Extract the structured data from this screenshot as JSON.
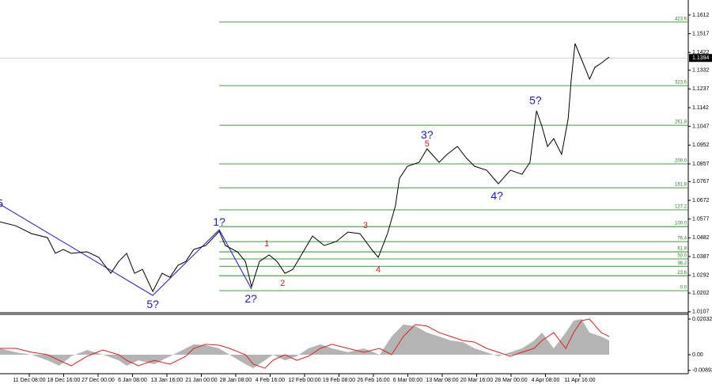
{
  "chart_data": {
    "type": "line",
    "xlim": [
      -8.5,
      191.5
    ],
    "xticks": [
      {
        "value": 0,
        "label": "11 Dec 08:00"
      },
      {
        "value": 10,
        "label": "18 Dec 16:00"
      },
      {
        "value": 20,
        "label": "27 Dec 00:00"
      },
      {
        "value": 30,
        "label": "6 Jan 08:00"
      },
      {
        "value": 40,
        "label": "13 Jan 16:00"
      },
      {
        "value": 50,
        "label": "21 Jan 00:00"
      },
      {
        "value": 60,
        "label": "28 Jan 08:00"
      },
      {
        "value": 70,
        "label": "4 Feb 16:00"
      },
      {
        "value": 80,
        "label": "12 Feb 00:00"
      },
      {
        "value": 90,
        "label": "19 Feb 08:00"
      },
      {
        "value": 100,
        "label": "26 Feb 16:00"
      },
      {
        "value": 110,
        "label": "6 Mar 00:00"
      },
      {
        "value": 120,
        "label": "13 Mar 08:00"
      },
      {
        "value": 130,
        "label": "20 Mar 16:00"
      },
      {
        "value": 140,
        "label": "28 Mar 00:00"
      },
      {
        "value": 150,
        "label": "4 Apr 08:00"
      },
      {
        "value": 160,
        "label": "11 Apr 16:00"
      }
    ],
    "ylim": [
      1.0102,
      1.1688
    ],
    "yticks": [
      1.1612,
      1.1517,
      1.1422,
      1.1332,
      1.1237,
      1.1142,
      1.1047,
      1.0952,
      1.0857,
      1.0767,
      1.0672,
      1.0577,
      1.0482,
      1.0387,
      1.0292,
      1.0202,
      1.0107
    ],
    "current_price": 1.1394,
    "price": {
      "color": "#000000",
      "x": [
        -8.5,
        -3.9,
        0.7,
        5.3,
        7.6,
        9.9,
        12.2,
        16.8,
        20.2,
        23.7,
        26,
        28.3,
        30.6,
        32.9,
        35.9,
        38.6,
        40.9,
        43.2,
        45.5,
        47.8,
        51.3,
        55.2,
        57,
        60.5,
        62.8,
        64.6,
        66.9,
        69.7,
        72,
        74.3,
        76.6,
        80,
        82.3,
        85.7,
        89.2,
        92.6,
        96.1,
        99.5,
        101.4,
        104.1,
        106.4,
        107.6,
        109.9,
        113.3,
        115.6,
        119.1,
        121.4,
        124.4,
        127.1,
        129.4,
        132.9,
        136.3,
        139.8,
        143.2,
        145.5,
        147.4,
        149,
        150.6,
        152.4,
        154.7,
        156.6,
        157.5,
        158.6,
        160.5,
        162.8,
        164.4,
        166.2,
        168.5
      ],
      "values": [
        1.0563,
        1.0543,
        1.0503,
        1.0483,
        1.0403,
        1.0423,
        1.0403,
        1.0411,
        1.0383,
        1.0302,
        1.0362,
        1.0403,
        1.0302,
        1.0322,
        1.021,
        1.0302,
        1.0282,
        1.0342,
        1.0362,
        1.0423,
        1.0443,
        1.0515,
        1.0443,
        1.0411,
        1.0362,
        1.0234,
        1.0362,
        1.0395,
        1.0362,
        1.0302,
        1.0322,
        1.0423,
        1.0491,
        1.0443,
        1.0463,
        1.0511,
        1.0503,
        1.0423,
        1.0383,
        1.0503,
        1.0644,
        1.0784,
        1.0845,
        1.0865,
        1.0933,
        1.0865,
        1.0905,
        1.0945,
        1.0885,
        1.0845,
        1.0825,
        1.0756,
        1.0825,
        1.0804,
        1.0865,
        1.1126,
        1.1046,
        1.0945,
        1.0985,
        1.0905,
        1.1086,
        1.1287,
        1.1467,
        1.1387,
        1.1287,
        1.1347,
        1.1367,
        1.1399
      ]
    },
    "wave_line": {
      "color": "#1a1acc",
      "x": [
        -8.5,
        35.9,
        55.2,
        64.6
      ],
      "values": [
        1.0652,
        1.019,
        1.0523,
        1.0222
      ]
    },
    "fib_start": 55.2,
    "fib_color": "#008000",
    "fib_levels": [
      {
        "label": "423.6",
        "price": 1.1576
      },
      {
        "label": "323.6",
        "price": 1.1254
      },
      {
        "label": "261.8",
        "price": 1.1053
      },
      {
        "label": "200.0",
        "price": 1.0857
      },
      {
        "label": "161.8",
        "price": 1.0736
      },
      {
        "label": "127.2",
        "price": 1.0624
      },
      {
        "label": "100.0",
        "price": 1.0539
      },
      {
        "label": "76.4",
        "price": 1.0463
      },
      {
        "label": "61.8",
        "price": 1.0411
      },
      {
        "label": "50.0",
        "price": 1.0375
      },
      {
        "label": "38.2",
        "price": 1.0338
      },
      {
        "label": "23.6",
        "price": 1.029
      },
      {
        "label": "0.0",
        "price": 1.0214
      }
    ],
    "annotations": [
      {
        "text": "5",
        "x": -8.5,
        "y": 1.0652,
        "color": "#1a1acc"
      },
      {
        "text": "5?",
        "x": 35.9,
        "y": 1.0141,
        "color": "#1a1acc"
      },
      {
        "text": "1?",
        "x": 55.2,
        "y": 1.0559,
        "color": "#1a1acc"
      },
      {
        "text": "2?",
        "x": 64.4,
        "y": 1.017,
        "color": "#1a1acc"
      },
      {
        "text": "1",
        "x": 69,
        "y": 1.0451,
        "color": "#d42020"
      },
      {
        "text": "2",
        "x": 73.6,
        "y": 1.025,
        "color": "#d42020"
      },
      {
        "text": "3",
        "x": 97.7,
        "y": 1.0543,
        "color": "#d42020"
      },
      {
        "text": "4",
        "x": 101.4,
        "y": 1.0318,
        "color": "#d42020"
      },
      {
        "text": "3?",
        "x": 115.6,
        "y": 1.1001,
        "color": "#1a1acc"
      },
      {
        "text": "5",
        "x": 115.6,
        "y": 1.0957,
        "color": "#d42020"
      },
      {
        "text": "4?",
        "x": 135.9,
        "y": 1.0692,
        "color": "#1a1acc"
      },
      {
        "text": "5?",
        "x": 147.1,
        "y": 1.1174,
        "color": "#1a1acc"
      }
    ],
    "oscillator": {
      "y2lim": [
        -0.00993,
        0.02303
      ],
      "y2ticks": [
        0.02032,
        {
          "value": 0,
          "label": "0.00"
        },
        -0.00893
      ],
      "x": [
        -8.5,
        -3.9,
        0.7,
        5.3,
        8.7,
        12.2,
        16.8,
        21.4,
        26,
        28.3,
        31.7,
        36.3,
        40.9,
        45.5,
        47.8,
        51.3,
        55.2,
        58.2,
        62.8,
        65.1,
        68.5,
        70.8,
        74.3,
        77.7,
        81.1,
        84.6,
        88,
        92.6,
        97.2,
        101.8,
        105.3,
        108.7,
        112.2,
        115.6,
        119.1,
        122.5,
        126,
        129.4,
        132.9,
        136.3,
        139.8,
        143.2,
        146.7,
        149,
        152.4,
        155.9,
        158.2,
        160.5,
        162.8,
        166.2,
        168.5
      ],
      "histogram": {
        "color": "#b4b4b4",
        "values": [
          0.0036,
          0.0014,
          0,
          -0.0032,
          -0.0063,
          -0.0009,
          0.0027,
          0,
          -0.0032,
          -0.0063,
          -0.0032,
          -0.0054,
          -0.0009,
          0.0036,
          0.0059,
          0.0054,
          0.0036,
          0,
          -0.0054,
          -0.0077,
          -0.0032,
          0,
          -0.0032,
          -0.0009,
          0.0036,
          0.0059,
          0.0036,
          0.0014,
          0.0036,
          0,
          0.0104,
          0.0172,
          0.0163,
          0.0126,
          0.0104,
          0.0081,
          0.0072,
          0.0036,
          0.0014,
          -0.0009,
          0.0014,
          0.0036,
          0.0081,
          0.0126,
          0.0036,
          0.0126,
          0.0194,
          0.0203,
          0.0126,
          0.0104,
          0.0081
        ]
      },
      "signal": {
        "color": "#e02020",
        "values": [
          0.0036,
          0.0036,
          0.0014,
          0,
          -0.0032,
          -0.0063,
          -0.0009,
          0.0027,
          0,
          -0.0032,
          -0.0063,
          -0.0032,
          -0.0054,
          -0.0009,
          0.0036,
          0.0059,
          0.0054,
          0.0036,
          0,
          -0.0054,
          -0.0077,
          -0.0032,
          0,
          -0.0032,
          -0.0009,
          0.0036,
          0.0059,
          0.0036,
          0.0014,
          0.0036,
          0,
          0.0104,
          0.0172,
          0.0163,
          0.0126,
          0.0104,
          0.0081,
          0.0072,
          0.0036,
          0.0014,
          -0.0009,
          0.0014,
          0.0036,
          0.0081,
          0.0126,
          0.0036,
          0.0126,
          0.0194,
          0.0203,
          0.0126,
          0.0104
        ]
      }
    }
  }
}
